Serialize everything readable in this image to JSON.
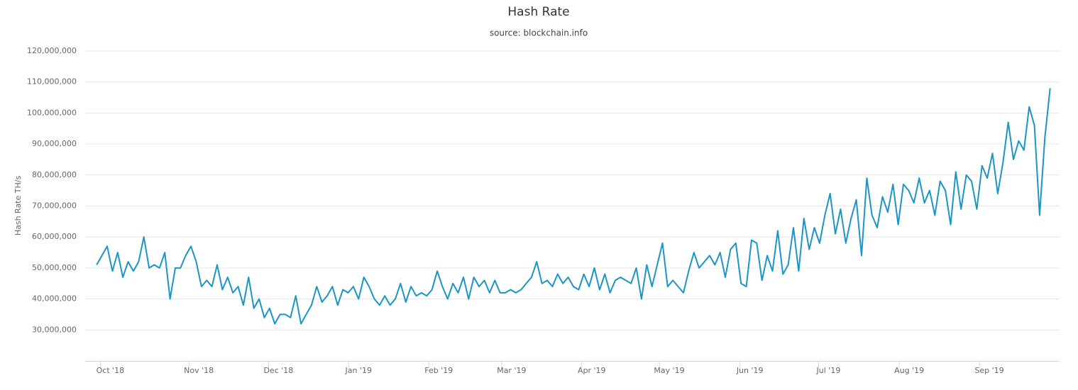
{
  "chart_data": {
    "type": "line",
    "title": "Hash Rate",
    "subtitle": "source: blockchain.info",
    "y_label": "Hash Rate TH/s",
    "series": [
      {
        "name": "Hash Rate",
        "color": "#1a95c4",
        "values": [
          51000000,
          54000000,
          57000000,
          49000000,
          55000000,
          47000000,
          52000000,
          49000000,
          52000000,
          60000000,
          50000000,
          51000000,
          50000000,
          55000000,
          40000000,
          50000000,
          50000000,
          54000000,
          57000000,
          52000000,
          44000000,
          46000000,
          44000000,
          51000000,
          43000000,
          47000000,
          42000000,
          44000000,
          38000000,
          47000000,
          37000000,
          40000000,
          34000000,
          37000000,
          32000000,
          35000000,
          35000000,
          34000000,
          41000000,
          32000000,
          35000000,
          38000000,
          44000000,
          39000000,
          41000000,
          44000000,
          38000000,
          43000000,
          42000000,
          44000000,
          40000000,
          47000000,
          44000000,
          40000000,
          38000000,
          41000000,
          38000000,
          40000000,
          45000000,
          39000000,
          44000000,
          41000000,
          42000000,
          41000000,
          43000000,
          49000000,
          44000000,
          40000000,
          45000000,
          42000000,
          47000000,
          40000000,
          47000000,
          44000000,
          46000000,
          42000000,
          46000000,
          42000000,
          42000000,
          43000000,
          42000000,
          43000000,
          45000000,
          47000000,
          52000000,
          45000000,
          46000000,
          44000000,
          48000000,
          45000000,
          47000000,
          44000000,
          43000000,
          48000000,
          44000000,
          50000000,
          43000000,
          48000000,
          42000000,
          46000000,
          47000000,
          46000000,
          45000000,
          50000000,
          40000000,
          51000000,
          44000000,
          51000000,
          58000000,
          44000000,
          46000000,
          44000000,
          42000000,
          49000000,
          55000000,
          50000000,
          52000000,
          54000000,
          51000000,
          55000000,
          47000000,
          56000000,
          58000000,
          45000000,
          44000000,
          59000000,
          58000000,
          46000000,
          54000000,
          49000000,
          62000000,
          48000000,
          51000000,
          63000000,
          49000000,
          66000000,
          56000000,
          63000000,
          58000000,
          67000000,
          74000000,
          61000000,
          69000000,
          58000000,
          66000000,
          72000000,
          54000000,
          79000000,
          67000000,
          63000000,
          73000000,
          68000000,
          77000000,
          64000000,
          77000000,
          75000000,
          71000000,
          79000000,
          71000000,
          75000000,
          67000000,
          78000000,
          75000000,
          64000000,
          81000000,
          69000000,
          80000000,
          78000000,
          69000000,
          83000000,
          79000000,
          87000000,
          74000000,
          84000000,
          97000000,
          85000000,
          91000000,
          88000000,
          102000000,
          96000000,
          67000000,
          92000000,
          108000000
        ]
      }
    ],
    "xlim": [
      -2.2,
      183.8
    ],
    "xticks": [
      {
        "value": 0.7,
        "label": "Oct '18"
      },
      {
        "value": 17.6,
        "label": "Nov '18"
      },
      {
        "value": 32.8,
        "label": "Dec '18"
      },
      {
        "value": 48.1,
        "label": "Jan '19"
      },
      {
        "value": 63.4,
        "label": "Feb '19"
      },
      {
        "value": 77.3,
        "label": "Mar '19"
      },
      {
        "value": 92.6,
        "label": "Apr '19"
      },
      {
        "value": 107.4,
        "label": "May '19"
      },
      {
        "value": 122.8,
        "label": "Jun '19"
      },
      {
        "value": 137.8,
        "label": "Jul '19"
      },
      {
        "value": 153.2,
        "label": "Aug '19"
      },
      {
        "value": 168.5,
        "label": "Sep '19"
      }
    ],
    "ylim": [
      20000000,
      120000000
    ],
    "yticks": [
      {
        "value": 30000000,
        "label": "30,000,000"
      },
      {
        "value": 40000000,
        "label": "40,000,000"
      },
      {
        "value": 50000000,
        "label": "50,000,000"
      },
      {
        "value": 60000000,
        "label": "60,000,000"
      },
      {
        "value": 70000000,
        "label": "70,000,000"
      },
      {
        "value": 80000000,
        "label": "80,000,000"
      },
      {
        "value": 90000000,
        "label": "90,000,000"
      },
      {
        "value": 100000000,
        "label": "100,000,000"
      },
      {
        "value": 110000000,
        "label": "110,000,000"
      },
      {
        "value": 120000000,
        "label": "120,000,000"
      }
    ],
    "grid": true
  }
}
